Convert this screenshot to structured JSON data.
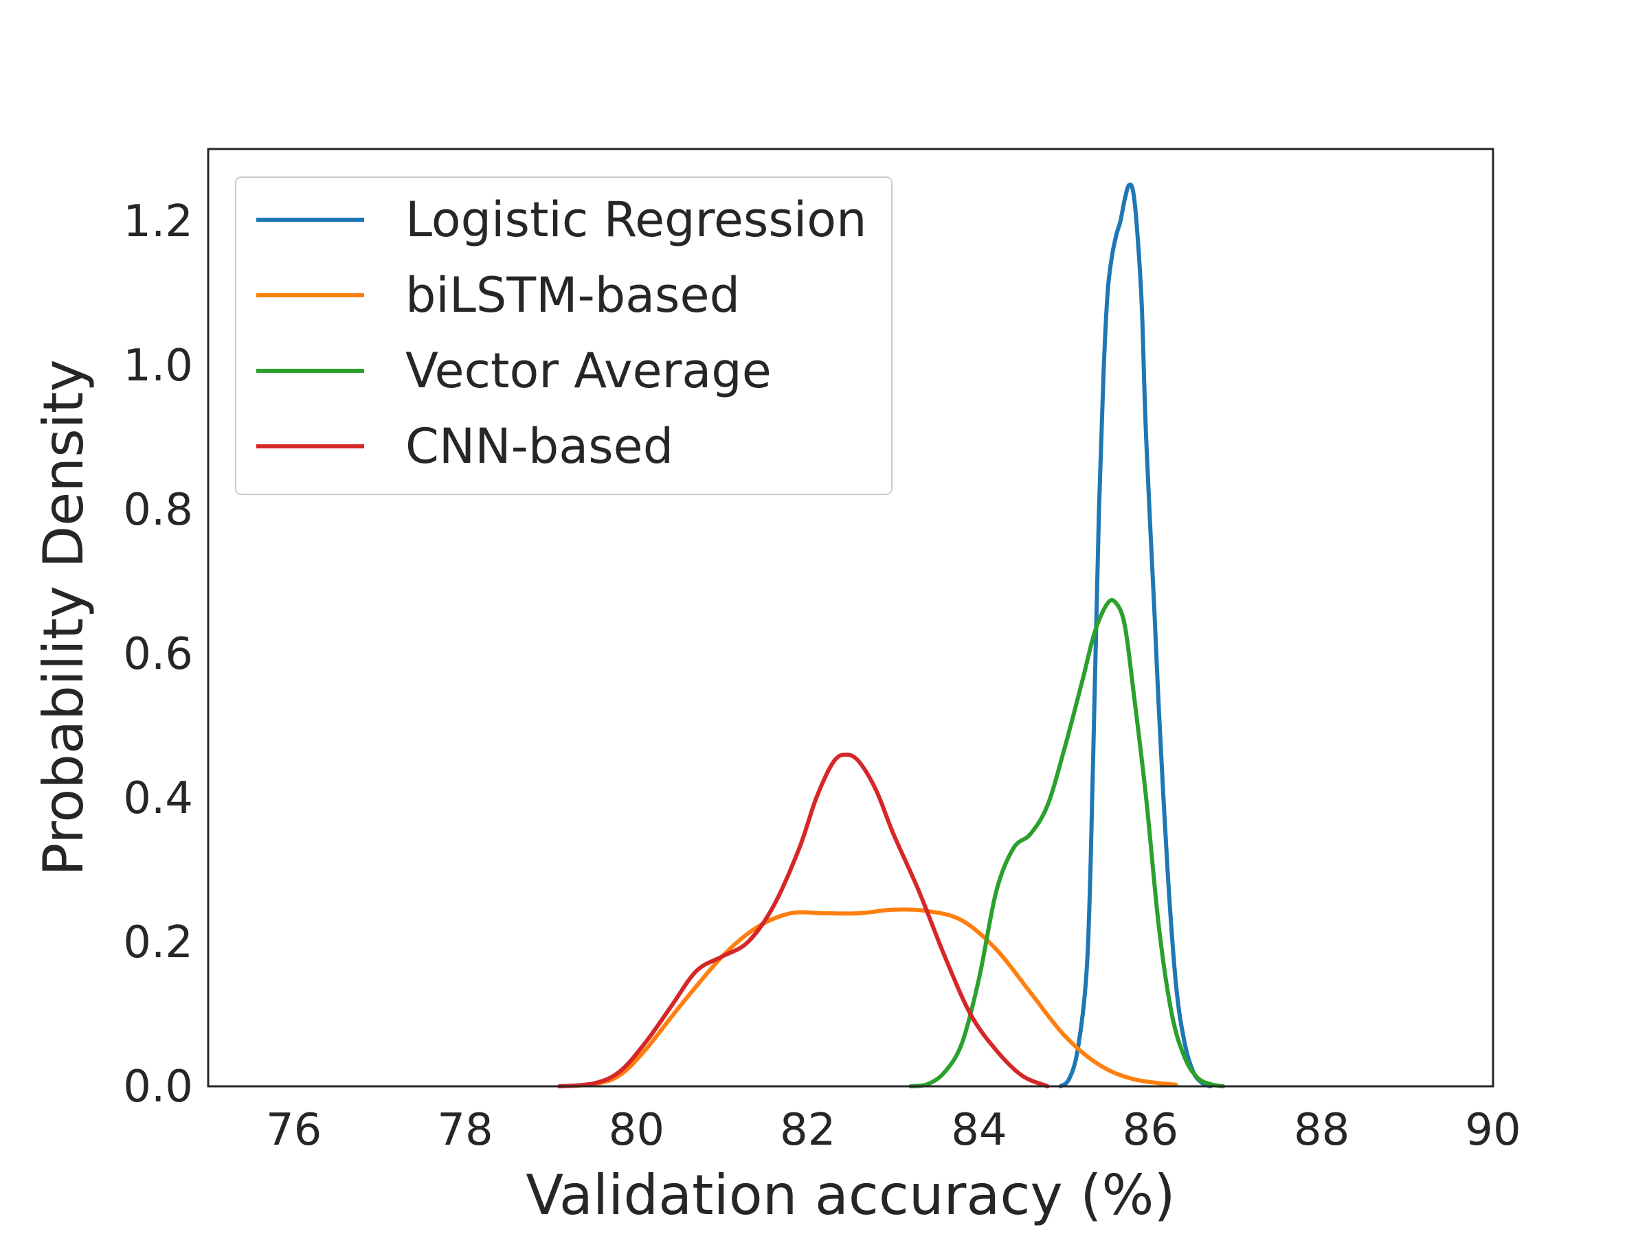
{
  "chart_data": {
    "type": "line",
    "title": "",
    "xlabel": "Validation accuracy (%)",
    "ylabel": "Probability Density",
    "xlim": [
      75,
      90
    ],
    "ylim": [
      0,
      1.3
    ],
    "xticks": [
      76,
      78,
      80,
      82,
      84,
      86,
      88,
      90
    ],
    "xtick_labels": [
      "76",
      "78",
      "80",
      "82",
      "84",
      "86",
      "88",
      "90"
    ],
    "yticks": [
      0.0,
      0.2,
      0.4,
      0.6,
      0.8,
      1.0,
      1.2
    ],
    "ytick_labels": [
      "0.0",
      "0.2",
      "0.4",
      "0.6",
      "0.8",
      "1.0",
      "1.2"
    ],
    "grid": false,
    "legend_position": "top-left",
    "series": [
      {
        "name": "Logistic Regression",
        "color": "#1f77b4",
        "points": [
          [
            84.95,
            0.0
          ],
          [
            85.05,
            0.01
          ],
          [
            85.15,
            0.05
          ],
          [
            85.25,
            0.15
          ],
          [
            85.3,
            0.3
          ],
          [
            85.35,
            0.55
          ],
          [
            85.4,
            0.8
          ],
          [
            85.45,
            0.98
          ],
          [
            85.5,
            1.1
          ],
          [
            85.55,
            1.15
          ],
          [
            85.6,
            1.18
          ],
          [
            85.65,
            1.2
          ],
          [
            85.7,
            1.23
          ],
          [
            85.75,
            1.25
          ],
          [
            85.8,
            1.24
          ],
          [
            85.85,
            1.18
          ],
          [
            85.9,
            1.08
          ],
          [
            85.95,
            0.9
          ],
          [
            86.05,
            0.65
          ],
          [
            86.1,
            0.52
          ],
          [
            86.2,
            0.3
          ],
          [
            86.3,
            0.14
          ],
          [
            86.4,
            0.06
          ],
          [
            86.5,
            0.02
          ],
          [
            86.6,
            0.005
          ],
          [
            86.7,
            0.0
          ]
        ]
      },
      {
        "name": "biLSTM-based",
        "color": "#ff7f0e",
        "points": [
          [
            79.1,
            0.0
          ],
          [
            79.5,
            0.003
          ],
          [
            79.8,
            0.015
          ],
          [
            80.1,
            0.05
          ],
          [
            80.5,
            0.11
          ],
          [
            81.0,
            0.18
          ],
          [
            81.4,
            0.22
          ],
          [
            81.8,
            0.24
          ],
          [
            82.2,
            0.24
          ],
          [
            82.6,
            0.24
          ],
          [
            83.0,
            0.245
          ],
          [
            83.4,
            0.243
          ],
          [
            83.8,
            0.23
          ],
          [
            84.2,
            0.19
          ],
          [
            84.6,
            0.13
          ],
          [
            85.0,
            0.07
          ],
          [
            85.4,
            0.03
          ],
          [
            85.8,
            0.01
          ],
          [
            86.3,
            0.002
          ]
        ]
      },
      {
        "name": "Vector Average",
        "color": "#2ca02c",
        "points": [
          [
            83.2,
            0.0
          ],
          [
            83.4,
            0.003
          ],
          [
            83.6,
            0.02
          ],
          [
            83.8,
            0.06
          ],
          [
            84.0,
            0.15
          ],
          [
            84.2,
            0.27
          ],
          [
            84.4,
            0.33
          ],
          [
            84.6,
            0.35
          ],
          [
            84.8,
            0.39
          ],
          [
            85.0,
            0.47
          ],
          [
            85.2,
            0.56
          ],
          [
            85.35,
            0.63
          ],
          [
            85.5,
            0.67
          ],
          [
            85.6,
            0.67
          ],
          [
            85.7,
            0.64
          ],
          [
            85.8,
            0.55
          ],
          [
            85.95,
            0.4
          ],
          [
            86.1,
            0.22
          ],
          [
            86.25,
            0.1
          ],
          [
            86.4,
            0.04
          ],
          [
            86.55,
            0.012
          ],
          [
            86.7,
            0.003
          ],
          [
            86.85,
            0.0
          ]
        ]
      },
      {
        "name": "CNN-based",
        "color": "#d62728",
        "points": [
          [
            79.1,
            0.0
          ],
          [
            79.5,
            0.004
          ],
          [
            79.8,
            0.02
          ],
          [
            80.1,
            0.06
          ],
          [
            80.4,
            0.11
          ],
          [
            80.7,
            0.16
          ],
          [
            81.0,
            0.18
          ],
          [
            81.3,
            0.2
          ],
          [
            81.6,
            0.25
          ],
          [
            81.9,
            0.33
          ],
          [
            82.1,
            0.4
          ],
          [
            82.3,
            0.45
          ],
          [
            82.45,
            0.46
          ],
          [
            82.6,
            0.45
          ],
          [
            82.8,
            0.41
          ],
          [
            83.0,
            0.35
          ],
          [
            83.3,
            0.27
          ],
          [
            83.6,
            0.18
          ],
          [
            83.9,
            0.1
          ],
          [
            84.2,
            0.05
          ],
          [
            84.5,
            0.015
          ],
          [
            84.8,
            0.0
          ]
        ]
      }
    ]
  }
}
